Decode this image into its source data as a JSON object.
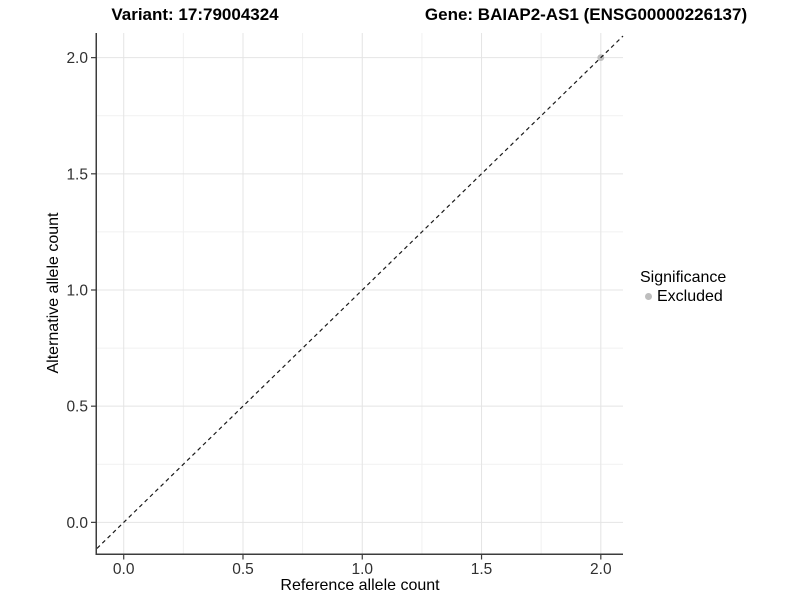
{
  "chart_data": {
    "type": "scatter",
    "title_left": "Variant: 17:79004324",
    "title_right": "Gene: BAIAP2-AS1 (ENSG00000226137)",
    "xlabel": "Reference allele count",
    "ylabel": "Alternative allele count",
    "xticks": [
      0,
      0.5,
      1,
      1.5,
      2
    ],
    "yticks": [
      0,
      0.5,
      1,
      1.5,
      2
    ],
    "tick_decimals": 1,
    "xlim": [
      -0.112,
      2.093
    ],
    "ylim": [
      -0.134,
      2.106
    ],
    "minor_tick_step": 0.25,
    "background": "#ffffff",
    "grid": {
      "major_color": "#e4e4e4",
      "minor_color": "#f1f1f1"
    },
    "axis_color": "#3c3c3c",
    "tick_label_color": "#303030",
    "reference_line": {
      "type": "identity",
      "dashed": true,
      "color": "#1a1a1a"
    },
    "series": [
      {
        "name": "Excluded",
        "color": "#bebebe",
        "points": [
          {
            "x": 2.0,
            "y": 2.0
          }
        ]
      }
    ],
    "legend": {
      "title": "Significance",
      "position": "right",
      "items": [
        {
          "label": "Excluded",
          "color": "#bebebe",
          "marker": "circle-icon"
        }
      ]
    }
  }
}
